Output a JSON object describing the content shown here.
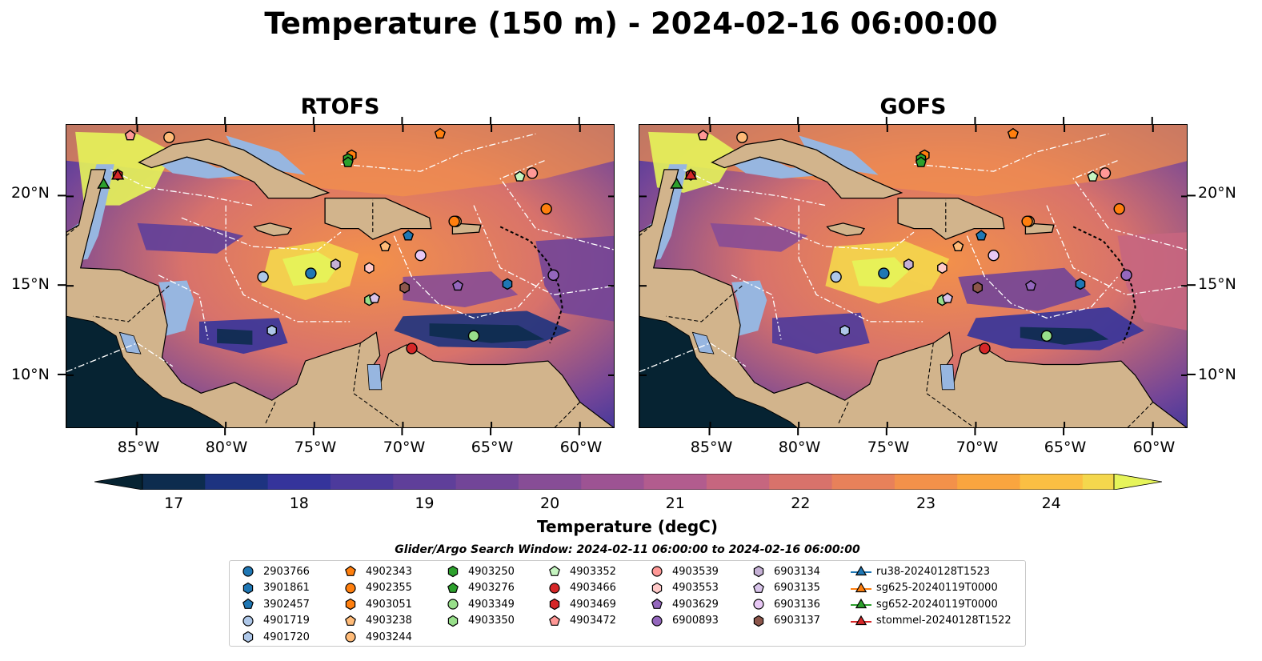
{
  "title": "Temperature (150 m) - 2024-02-16 06:00:00",
  "panels": [
    {
      "title": "RTOFS"
    },
    {
      "title": "GOFS"
    }
  ],
  "lat_ticks": [
    "20°N",
    "15°N",
    "10°N"
  ],
  "lon_ticks": [
    "85°W",
    "80°W",
    "75°W",
    "70°W",
    "65°W",
    "60°W"
  ],
  "colorbar": {
    "label": "Temperature (degC)",
    "ticks": [
      "17",
      "18",
      "19",
      "20",
      "21",
      "22",
      "23",
      "24"
    ],
    "min": 16.75,
    "max": 24.5,
    "step": 0.5,
    "extend": "both",
    "colors": [
      "#062332",
      "#0d2c4e",
      "#1d3380",
      "#35349b",
      "#4c3a9c",
      "#5f3f9a",
      "#724598",
      "#874d96",
      "#9d5393",
      "#b25c8e",
      "#c6667f",
      "#d8726b",
      "#e8815a",
      "#f3914a",
      "#f9a53f",
      "#fbbf43",
      "#f4d74d",
      "#e6f45a"
    ]
  },
  "search_window": "Glider/Argo Search Window: 2024-02-11 06:00:00 to 2024-02-16 06:00:00",
  "legend": [
    {
      "label": "2903766",
      "marker": "circle",
      "color": "#1f77b4"
    },
    {
      "label": "3901861",
      "marker": "hexagon",
      "color": "#1f77b4"
    },
    {
      "label": "3902457",
      "marker": "pentagon",
      "color": "#1f77b4"
    },
    {
      "label": "4901719",
      "marker": "circle",
      "color": "#aec7e8"
    },
    {
      "label": "4901720",
      "marker": "hexagon",
      "color": "#aec7e8"
    },
    {
      "label": "4902343",
      "marker": "pentagon",
      "color": "#ff7f0e"
    },
    {
      "label": "4902355",
      "marker": "circle",
      "color": "#ff7f0e"
    },
    {
      "label": "4903051",
      "marker": "hexagon",
      "color": "#ff7f0e"
    },
    {
      "label": "4903238",
      "marker": "pentagon",
      "color": "#ffbb78"
    },
    {
      "label": "4903244",
      "marker": "circle",
      "color": "#ffbb78"
    },
    {
      "label": "4903250",
      "marker": "hexagon",
      "color": "#2ca02c"
    },
    {
      "label": "4903276",
      "marker": "pentagon",
      "color": "#2ca02c"
    },
    {
      "label": "4903349",
      "marker": "circle",
      "color": "#98df8a"
    },
    {
      "label": "4903350",
      "marker": "hexagon",
      "color": "#98df8a"
    },
    {
      "label": "4903352",
      "marker": "pentagon",
      "color": "#c5f5c0"
    },
    {
      "label": "4903466",
      "marker": "circle",
      "color": "#d62728"
    },
    {
      "label": "4903469",
      "marker": "hexagon",
      "color": "#d62728"
    },
    {
      "label": "4903472",
      "marker": "pentagon",
      "color": "#ff9896"
    },
    {
      "label": "4903539",
      "marker": "circle",
      "color": "#ff9896"
    },
    {
      "label": "4903553",
      "marker": "hexagon",
      "color": "#ffc9c8"
    },
    {
      "label": "4903629",
      "marker": "pentagon",
      "color": "#9467bd"
    },
    {
      "label": "6900893",
      "marker": "circle",
      "color": "#9467bd"
    },
    {
      "label": "6903134",
      "marker": "hexagon",
      "color": "#c5b0d5"
    },
    {
      "label": "6903135",
      "marker": "pentagon",
      "color": "#d8c4ea"
    },
    {
      "label": "6903136",
      "marker": "circle",
      "color": "#e8c8f5"
    },
    {
      "label": "6903137",
      "marker": "hexagon",
      "color": "#8c564b"
    },
    {
      "label": "ru38-20240128T1523",
      "marker": "triangle-line",
      "color": "#1f77b4"
    },
    {
      "label": "sg625-20240119T0000",
      "marker": "triangle-line",
      "color": "#ff7f0e"
    },
    {
      "label": "sg652-20240119T0000",
      "marker": "triangle-line",
      "color": "#2ca02c"
    },
    {
      "label": "stommel-20240128T1522",
      "marker": "triangle-line",
      "color": "#d62728"
    }
  ],
  "floats": [
    {
      "id": "2903766",
      "lon": -75.2,
      "lat": 15.7
    },
    {
      "id": "3901861",
      "lon": -64.1,
      "lat": 15.1
    },
    {
      "id": "3902457",
      "lon": -69.7,
      "lat": 17.8
    },
    {
      "id": "4901719",
      "lon": -77.9,
      "lat": 15.5
    },
    {
      "id": "4901720",
      "lon": -77.4,
      "lat": 12.5
    },
    {
      "id": "4902343",
      "lon": -67.9,
      "lat": 23.5
    },
    {
      "id": "4902355",
      "lon": -61.9,
      "lat": 19.3
    },
    {
      "id": "4903051",
      "lon": -72.9,
      "lat": 22.3
    },
    {
      "id": "4903238",
      "lon": -71.0,
      "lat": 17.2
    },
    {
      "id": "4903244",
      "lon": -67.0,
      "lat": 18.6
    },
    {
      "id": "4903250",
      "lon": -73.1,
      "lat": 22.1
    },
    {
      "id": "4903276",
      "lon": -73.1,
      "lat": 21.9
    },
    {
      "id": "4903349",
      "lon": -66.0,
      "lat": 12.2
    },
    {
      "id": "4903350",
      "lon": -71.9,
      "lat": 14.2
    },
    {
      "id": "4903352",
      "lon": -63.4,
      "lat": 21.1
    },
    {
      "id": "4903466",
      "lon": -69.5,
      "lat": 11.5
    },
    {
      "id": "4903469",
      "lon": -86.1,
      "lat": 21.2
    },
    {
      "id": "4903472",
      "lon": -85.4,
      "lat": 23.4
    },
    {
      "id": "4903539",
      "lon": -62.7,
      "lat": 21.3
    },
    {
      "id": "4903553",
      "lon": -71.9,
      "lat": 16.0
    },
    {
      "id": "4903629",
      "lon": -66.9,
      "lat": 15.0
    },
    {
      "id": "6900893",
      "lon": -61.5,
      "lat": 15.6
    },
    {
      "id": "6903134",
      "lon": -73.8,
      "lat": 16.2
    },
    {
      "id": "6903135",
      "lon": -71.6,
      "lat": 14.3
    },
    {
      "id": "6903136",
      "lon": -69.0,
      "lat": 16.7
    },
    {
      "id": "6903137",
      "lon": -69.9,
      "lat": 14.9
    },
    {
      "id": "4903244b",
      "lon": -83.2,
      "lat": 23.3,
      "same_as": "4903244"
    },
    {
      "id": "4902355b",
      "lon": -67.1,
      "lat": 18.6,
      "same_as": "4902355"
    }
  ],
  "gliders": [
    {
      "id": "sg652-20240119T0000",
      "lon": -86.9,
      "lat": 20.6
    },
    {
      "id": "stommel-20240128T1522",
      "lon": -86.1,
      "lat": 21.1
    }
  ],
  "extent": {
    "lon_min": -89,
    "lon_max": -58,
    "lat_min": 7,
    "lat_max": 24
  }
}
